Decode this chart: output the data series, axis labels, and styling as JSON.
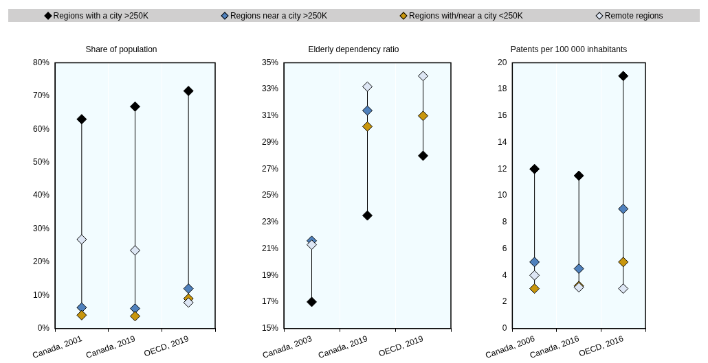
{
  "chart_data": [
    {
      "type": "scatter",
      "title": "Share of population",
      "categories": [
        "Canada, 2001",
        "Canada, 2019",
        "OECD, 2019"
      ],
      "ylim": [
        0,
        80
      ],
      "yticks": [
        {
          "value": 0,
          "label": "0%"
        },
        {
          "value": 10,
          "label": "10%"
        },
        {
          "value": 20,
          "label": "20%"
        },
        {
          "value": 30,
          "label": "30%"
        },
        {
          "value": 40,
          "label": "40%"
        },
        {
          "value": 50,
          "label": "50%"
        },
        {
          "value": 60,
          "label": "60%"
        },
        {
          "value": 70,
          "label": "70%"
        },
        {
          "value": 80,
          "label": "80%"
        }
      ],
      "marker": "diamond",
      "grid": "x",
      "legend": "top",
      "series": [
        {
          "name": "Regions with a city >250K",
          "color": "#000000",
          "values": [
            63,
            66.8,
            71.5
          ]
        },
        {
          "name": "Regions near a city >250K",
          "color": "#4f81bd",
          "values": [
            6.3,
            6.0,
            12
          ]
        },
        {
          "name": "Regions with/near a city <250K",
          "color": "#c8960c",
          "values": [
            4.0,
            3.7,
            9
          ]
        },
        {
          "name": "Remote regions",
          "color": "#dde6f4",
          "values": [
            26.8,
            23.5,
            7.8
          ]
        }
      ]
    },
    {
      "type": "scatter",
      "title": "Elderly dependency ratio",
      "categories": [
        "Canada, 2003",
        "Canada, 2019",
        "OECD, 2019"
      ],
      "ylim": [
        15,
        35
      ],
      "yticks": [
        {
          "value": 15,
          "label": "15%"
        },
        {
          "value": 17,
          "label": "17%"
        },
        {
          "value": 19,
          "label": "19%"
        },
        {
          "value": 21,
          "label": "21%"
        },
        {
          "value": 23,
          "label": "23%"
        },
        {
          "value": 25,
          "label": "25%"
        },
        {
          "value": 27,
          "label": "27%"
        },
        {
          "value": 29,
          "label": "29%"
        },
        {
          "value": 31,
          "label": "31%"
        },
        {
          "value": 33,
          "label": "33%"
        },
        {
          "value": 35,
          "label": "35%"
        }
      ],
      "marker": "diamond",
      "grid": "x",
      "series": [
        {
          "color": "#000000",
          "values": [
            17.0,
            23.5,
            28.0
          ]
        },
        {
          "color": "#4f81bd",
          "values": [
            21.6,
            31.4,
            null
          ]
        },
        {
          "color": "#c8960c",
          "values": [
            null,
            30.2,
            31.0
          ]
        },
        {
          "color": "#dde6f4",
          "values": [
            21.3,
            33.2,
            34.0
          ]
        }
      ]
    },
    {
      "type": "scatter",
      "title": "Patents per 100 000 inhabitants",
      "categories": [
        "Canada, 2006",
        "Canada, 2016",
        "OECD, 2016"
      ],
      "ylim": [
        0,
        20
      ],
      "yticks": [
        0,
        2,
        4,
        6,
        8,
        10,
        12,
        14,
        16,
        18,
        20
      ],
      "marker": "diamond",
      "grid": "x",
      "series": [
        {
          "color": "#000000",
          "values": [
            12.0,
            11.5,
            19.0
          ]
        },
        {
          "color": "#4f81bd",
          "values": [
            5.0,
            4.5,
            9.0
          ]
        },
        {
          "color": "#c8960c",
          "values": [
            3.0,
            3.2,
            5.0
          ]
        },
        {
          "color": "#dde6f4",
          "values": [
            4.0,
            3.1,
            3.0
          ]
        }
      ]
    }
  ]
}
